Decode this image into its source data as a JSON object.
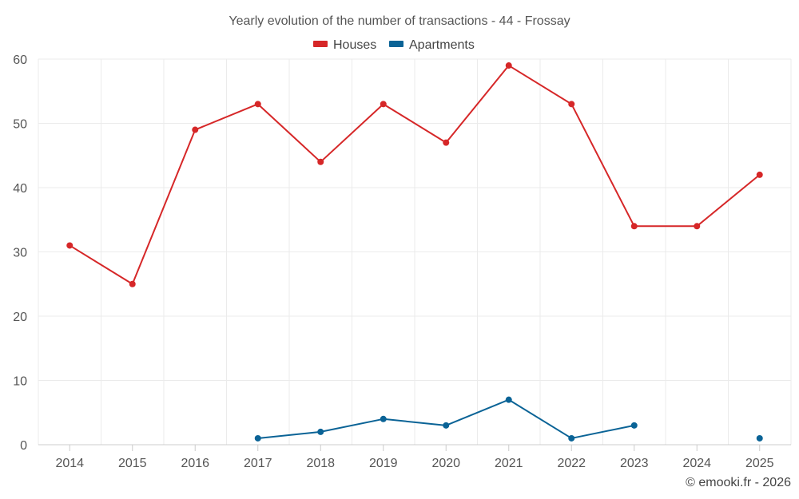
{
  "chart_data": {
    "type": "line",
    "title": "Yearly evolution of the number of transactions - 44 - Frossay",
    "categories": [
      "2014",
      "2015",
      "2016",
      "2017",
      "2018",
      "2019",
      "2020",
      "2021",
      "2022",
      "2023",
      "2024",
      "2025"
    ],
    "series": [
      {
        "name": "Houses",
        "color": "#d62728",
        "values": [
          31,
          25,
          49,
          53,
          44,
          53,
          47,
          59,
          53,
          34,
          34,
          42
        ]
      },
      {
        "name": "Apartments",
        "color": "#0a6396",
        "values": [
          null,
          null,
          null,
          1,
          2,
          4,
          3,
          7,
          1,
          3,
          null,
          1
        ]
      }
    ],
    "ylim": [
      0,
      60
    ],
    "yticks": [
      0,
      10,
      20,
      30,
      40,
      50,
      60
    ],
    "xlabel": "",
    "ylabel": "",
    "grid": true,
    "legend_position": "top-center",
    "credit": "© emooki.fr - 2026"
  }
}
